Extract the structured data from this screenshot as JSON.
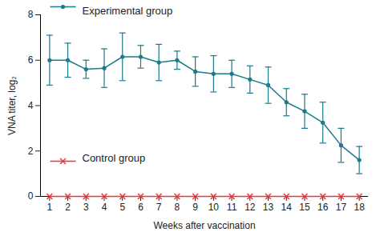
{
  "chart_data": {
    "type": "line",
    "x_label": "Weeks after vaccination",
    "y_label": "VNA titer, log₂",
    "x": [
      1,
      2,
      3,
      4,
      5,
      6,
      7,
      8,
      9,
      10,
      11,
      12,
      13,
      14,
      15,
      16,
      17,
      18
    ],
    "xlim": [
      0.5,
      18.5
    ],
    "xticks": [
      1,
      2,
      3,
      4,
      5,
      6,
      7,
      8,
      9,
      10,
      11,
      12,
      13,
      14,
      15,
      16,
      17,
      18
    ],
    "ylim": [
      0,
      8
    ],
    "yticks": [
      0,
      2,
      4,
      6,
      8
    ],
    "grid": false,
    "legend": "left",
    "series": [
      {
        "name": "Experimental group",
        "color": "#1b7a8c",
        "marker": "circle",
        "line_style": "solid",
        "values": [
          6.0,
          6.0,
          5.6,
          5.65,
          6.15,
          6.15,
          5.9,
          6.0,
          5.5,
          5.4,
          5.4,
          5.15,
          4.9,
          4.15,
          3.75,
          3.25,
          2.25,
          1.6
        ],
        "error": [
          1.1,
          0.75,
          0.4,
          0.85,
          1.05,
          0.5,
          0.8,
          0.4,
          0.65,
          0.8,
          0.6,
          0.6,
          0.8,
          0.6,
          0.75,
          0.9,
          0.75,
          0.6
        ]
      },
      {
        "name": "Control group",
        "color": "#e8393a",
        "marker": "x",
        "line_style": "solid",
        "values": [
          0,
          0,
          0,
          0,
          0,
          0,
          0,
          0,
          0,
          0,
          0,
          0,
          0,
          0,
          0,
          0,
          0,
          0
        ]
      }
    ]
  }
}
